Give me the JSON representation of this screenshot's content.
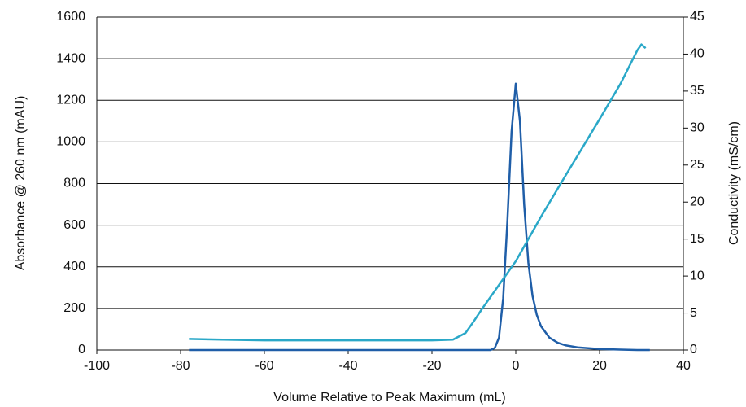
{
  "chart_data": {
    "type": "line",
    "x_label": "Volume Relative to Peak Maximum (mL)",
    "y_label": "Absorbance @ 260 nm (mAU)",
    "y2_label": "Conductivity (mS/cm)",
    "x": [
      -78,
      -70,
      -60,
      -50,
      -40,
      -30,
      -20,
      -15,
      -12,
      -10,
      -8,
      -6,
      -5,
      -4,
      -3,
      -2,
      -1,
      0,
      1,
      2,
      3,
      4,
      5,
      6,
      8,
      10,
      12,
      15,
      20,
      25,
      29,
      30,
      31,
      32
    ],
    "series": [
      {
        "name": "Absorbance",
        "color": "#1f5ea8",
        "axis": "y",
        "values": [
          0,
          0,
          0,
          0,
          0,
          0,
          0,
          0,
          0,
          0,
          0,
          0,
          10,
          60,
          250,
          620,
          1050,
          1280,
          1100,
          700,
          420,
          260,
          170,
          115,
          60,
          35,
          22,
          12,
          5,
          2,
          0,
          0,
          0,
          0
        ]
      },
      {
        "name": "Conductivity",
        "color": "#2aa8c8",
        "axis": "y2",
        "values": [
          1.5,
          1.4,
          1.3,
          1.3,
          1.3,
          1.3,
          1.3,
          1.4,
          2.3,
          3.9,
          5.6,
          7.2,
          8.0,
          8.8,
          9.6,
          10.4,
          11.2,
          12.0,
          13.0,
          14.0,
          15.0,
          16.0,
          17.0,
          18.0,
          19.9,
          21.8,
          23.7,
          26.5,
          31.2,
          36.0,
          40.5,
          41.3,
          40.8,
          null
        ]
      }
    ],
    "xlim": [
      -100,
      40
    ],
    "xticks": [
      -100,
      -80,
      -60,
      -40,
      -20,
      0,
      20,
      40
    ],
    "ylim": [
      0,
      1600
    ],
    "yticks": [
      0,
      200,
      400,
      600,
      800,
      1000,
      1200,
      1400,
      1600
    ],
    "y2lim": [
      0,
      45
    ],
    "y2ticks": [
      0,
      5,
      10,
      15,
      20,
      25,
      30,
      35,
      40,
      45
    ],
    "grid": true
  }
}
